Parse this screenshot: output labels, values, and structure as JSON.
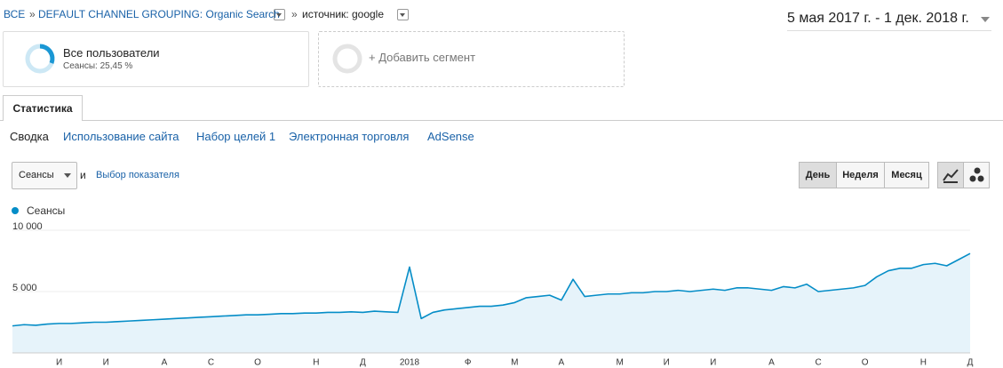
{
  "breadcrumb": {
    "items": [
      "ВСЕ",
      "»",
      "DEFAULT CHANNEL GROUPING: Organic Search",
      "»",
      "источник: google"
    ]
  },
  "date_range": "5 мая 2017 г. - 1 дек. 2018 г.",
  "segments": {
    "active": {
      "title": "Все пользователи",
      "subtitle": "Сеансы: 25,45 %"
    },
    "add": "+ Добавить сегмент"
  },
  "tab": "Статистика",
  "subnav": [
    "Сводка",
    "Использование сайта",
    "Набор целей 1",
    "Электронная торговля",
    "AdSense"
  ],
  "controls": {
    "metric": "Сеансы",
    "and": "и",
    "pick_metric": "Выбор показателя",
    "periods": [
      "День",
      "Неделя",
      "Месяц"
    ]
  },
  "chart_data": {
    "type": "line",
    "categories": [
      null,
      null,
      null,
      null,
      "И",
      null,
      null,
      null,
      "И",
      null,
      null,
      null,
      null,
      "А",
      null,
      null,
      null,
      "С",
      null,
      null,
      null,
      "О",
      null,
      null,
      null,
      null,
      "Н",
      null,
      null,
      null,
      "Д",
      null,
      null,
      null,
      "2018",
      null,
      null,
      null,
      null,
      "Ф",
      null,
      null,
      null,
      "М",
      null,
      null,
      null,
      "А",
      null,
      null,
      null,
      null,
      "М",
      null,
      null,
      null,
      "И",
      null,
      null,
      null,
      "И",
      null,
      null,
      null,
      null,
      "А",
      null,
      null,
      null,
      "С",
      null,
      null,
      null,
      "О",
      null,
      null,
      null,
      null,
      "Н",
      null,
      null,
      null,
      "Д"
    ],
    "series": [
      {
        "name": "Сеансы",
        "color": "#058dc7",
        "values": [
          2200,
          2300,
          2250,
          2350,
          2400,
          2400,
          2450,
          2500,
          2500,
          2550,
          2600,
          2650,
          2700,
          2750,
          2800,
          2850,
          2900,
          2950,
          3000,
          3050,
          3100,
          3100,
          3150,
          3200,
          3200,
          3250,
          3250,
          3300,
          3300,
          3350,
          3300,
          3400,
          3350,
          3300,
          7000,
          2800,
          3300,
          3500,
          3600,
          3700,
          3800,
          3800,
          3900,
          4100,
          4500,
          4600,
          4700,
          4300,
          6000,
          4600,
          4700,
          4800,
          4800,
          4900,
          4900,
          5000,
          5000,
          5100,
          5000,
          5100,
          5200,
          5100,
          5300,
          5300,
          5200,
          5100,
          5400,
          5300,
          5600,
          5000,
          5100,
          5200,
          5300,
          5500,
          6200,
          6700,
          6900,
          6900,
          7200,
          7300,
          7100,
          7600,
          8100
        ]
      }
    ],
    "ylim": [
      0,
      10000
    ],
    "yticks": [
      {
        "value": 5000,
        "label": "5 000"
      },
      {
        "value": 10000,
        "label": "10 000"
      }
    ],
    "grid": true,
    "area": true
  }
}
